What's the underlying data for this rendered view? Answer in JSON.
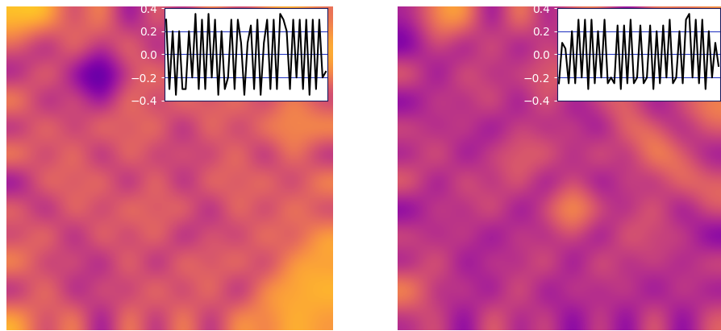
{
  "chart_data": [
    {
      "type": "heatmap",
      "tick_labels": false,
      "cell_range": [
        -0.4,
        0.4
      ],
      "cells": [
        [
          0.3,
          0.35,
          -0.1,
          0.3,
          -0.3,
          0.2,
          -0.2,
          0.3,
          -0.1,
          0.2,
          0.3,
          0.1
        ],
        [
          0.1,
          -0.3,
          0.3,
          -0.2,
          0.3,
          -0.3,
          0.2,
          -0.2,
          0.3,
          -0.2,
          0.1,
          0.3
        ],
        [
          -0.2,
          0.3,
          -0.3,
          -0.35,
          -0.1,
          0.3,
          -0.2,
          0.2,
          -0.2,
          0.3,
          -0.1,
          0.2
        ],
        [
          0.3,
          -0.3,
          0.2,
          -0.3,
          0.3,
          -0.2,
          0.3,
          -0.1,
          0.3,
          -0.2,
          0.3,
          -0.1
        ],
        [
          -0.2,
          0.3,
          -0.2,
          0.3,
          -0.1,
          0.3,
          -0.3,
          0.3,
          -0.2,
          0.3,
          0.1,
          0.3
        ],
        [
          0.3,
          -0.2,
          0.3,
          -0.3,
          0.3,
          -0.2,
          0.2,
          -0.2,
          0.3,
          -0.3,
          0.3,
          -0.2
        ],
        [
          -0.3,
          0.3,
          -0.1,
          0.3,
          -0.3,
          0.3,
          -0.3,
          0.3,
          -0.1,
          0.3,
          -0.2,
          0.3
        ],
        [
          0.2,
          -0.3,
          0.3,
          -0.2,
          0.3,
          -0.1,
          0.3,
          -0.3,
          0.3,
          -0.2,
          0.3,
          -0.1
        ],
        [
          -0.1,
          0.3,
          -0.3,
          0.3,
          -0.2,
          0.3,
          -0.3,
          0.2,
          -0.2,
          0.3,
          -0.1,
          0.3
        ],
        [
          0.3,
          -0.2,
          0.2,
          -0.3,
          0.3,
          -0.3,
          0.3,
          -0.1,
          0.3,
          -0.2,
          0.3,
          0.2
        ],
        [
          -0.2,
          0.3,
          -0.3,
          0.2,
          -0.2,
          0.3,
          -0.2,
          0.3,
          -0.3,
          0.3,
          0.2,
          0.3
        ],
        [
          0.3,
          -0.1,
          0.3,
          -0.3,
          0.3,
          -0.2,
          0.3,
          -0.2,
          0.3,
          0.1,
          0.3,
          0.2
        ]
      ],
      "inset": {
        "type": "line",
        "color": "#000000",
        "tick_labels": "y",
        "ylim": [
          -0.4,
          0.4
        ],
        "yticks": [
          {
            "value": -0.4,
            "label": "−0.4"
          },
          {
            "value": -0.2,
            "label": "−0.2"
          },
          0.0,
          0.2,
          0.4
        ],
        "reference_lines": [
          -0.2,
          0.0,
          0.2
        ],
        "values": [
          0.3,
          -0.3,
          0.2,
          -0.35,
          0.2,
          -0.3,
          -0.3,
          0.2,
          -0.2,
          0.35,
          -0.3,
          0.3,
          -0.3,
          0.35,
          -0.2,
          0.3,
          -0.35,
          0.2,
          -0.3,
          -0.2,
          0.3,
          -0.3,
          0.3,
          0.1,
          -0.35,
          0.1,
          0.25,
          -0.3,
          0.3,
          -0.35,
          0.1,
          0.3,
          -0.3,
          0.3,
          -0.3,
          0.35,
          0.3,
          0.2,
          -0.3,
          0.3,
          -0.2,
          0.3,
          -0.3,
          0.3,
          -0.35,
          0.3,
          -0.3,
          0.3,
          -0.2,
          -0.15
        ]
      }
    },
    {
      "type": "heatmap",
      "tick_labels": false,
      "cell_range": [
        -0.4,
        0.4
      ],
      "cells": [
        [
          -0.1,
          0.2,
          0.3,
          -0.3,
          0.3,
          -0.2,
          0.1,
          0.2,
          -0.3,
          0.2,
          0.1,
          0.2
        ],
        [
          -0.3,
          0.1,
          -0.3,
          0.2,
          -0.3,
          0.1,
          -0.2,
          0.0,
          -0.2,
          0.1,
          -0.3,
          0.1
        ],
        [
          0.2,
          -0.3,
          0.2,
          -0.2,
          0.1,
          0.0,
          0.2,
          -0.1,
          0.1,
          0.2,
          -0.2,
          0.0
        ],
        [
          -0.3,
          0.1,
          -0.2,
          0.2,
          -0.3,
          0.2,
          -0.3,
          0.1,
          0.1,
          -0.3,
          0.1,
          0.2
        ],
        [
          0.1,
          -0.2,
          0.1,
          -0.3,
          0.1,
          -0.2,
          0.1,
          -0.3,
          0.2,
          0.1,
          -0.2,
          0.1
        ],
        [
          -0.2,
          0.2,
          -0.3,
          0.1,
          0.0,
          0.2,
          -0.2,
          0.2,
          -0.2,
          0.3,
          0.1,
          -0.2
        ],
        [
          0.2,
          -0.3,
          0.2,
          -0.2,
          0.2,
          -0.3,
          0.1,
          -0.3,
          0.1,
          -0.2,
          0.2,
          0.1
        ],
        [
          -0.3,
          0.1,
          -0.2,
          0.2,
          -0.3,
          0.1,
          0.3,
          0.1,
          -0.2,
          0.2,
          -0.3,
          0.1
        ],
        [
          0.1,
          -0.2,
          0.1,
          -0.3,
          0.1,
          -0.2,
          0.1,
          -0.3,
          0.2,
          -0.1,
          0.1,
          -0.3
        ],
        [
          -0.2,
          0.2,
          -0.3,
          0.1,
          -0.2,
          0.2,
          -0.3,
          0.2,
          -0.2,
          0.1,
          -0.2,
          0.1
        ],
        [
          0.3,
          -0.2,
          0.1,
          -0.3,
          0.2,
          -0.3,
          0.1,
          -0.2,
          0.1,
          -0.3,
          0.1,
          -0.2
        ],
        [
          -0.1,
          0.1,
          -0.3,
          0.2,
          -0.2,
          0.1,
          -0.3,
          0.1,
          -0.3,
          0.2,
          -0.3,
          0.1
        ]
      ],
      "inset": {
        "type": "line",
        "color": "#000000",
        "tick_labels": "y",
        "ylim": [
          -0.4,
          0.4
        ],
        "yticks": [
          {
            "value": -0.4,
            "label": "−0.4"
          },
          {
            "value": -0.2,
            "label": "−0.2"
          },
          0.0,
          0.2,
          0.4
        ],
        "reference_lines": [
          -0.2,
          0.0,
          0.2
        ],
        "values": [
          -0.25,
          0.1,
          0.05,
          -0.25,
          0.2,
          -0.25,
          0.3,
          -0.2,
          0.3,
          -0.3,
          0.3,
          -0.25,
          0.2,
          -0.2,
          0.3,
          -0.25,
          -0.2,
          -0.25,
          0.25,
          -0.3,
          0.25,
          -0.25,
          0.3,
          -0.25,
          -0.2,
          0.25,
          -0.25,
          -0.2,
          0.25,
          -0.3,
          0.2,
          -0.25,
          0.25,
          -0.2,
          0.3,
          -0.25,
          -0.2,
          0.2,
          -0.25,
          0.3,
          0.35,
          -0.2,
          0.3,
          -0.25,
          0.3,
          -0.3,
          0.2,
          -0.2,
          0.1,
          -0.1
        ]
      }
    }
  ]
}
